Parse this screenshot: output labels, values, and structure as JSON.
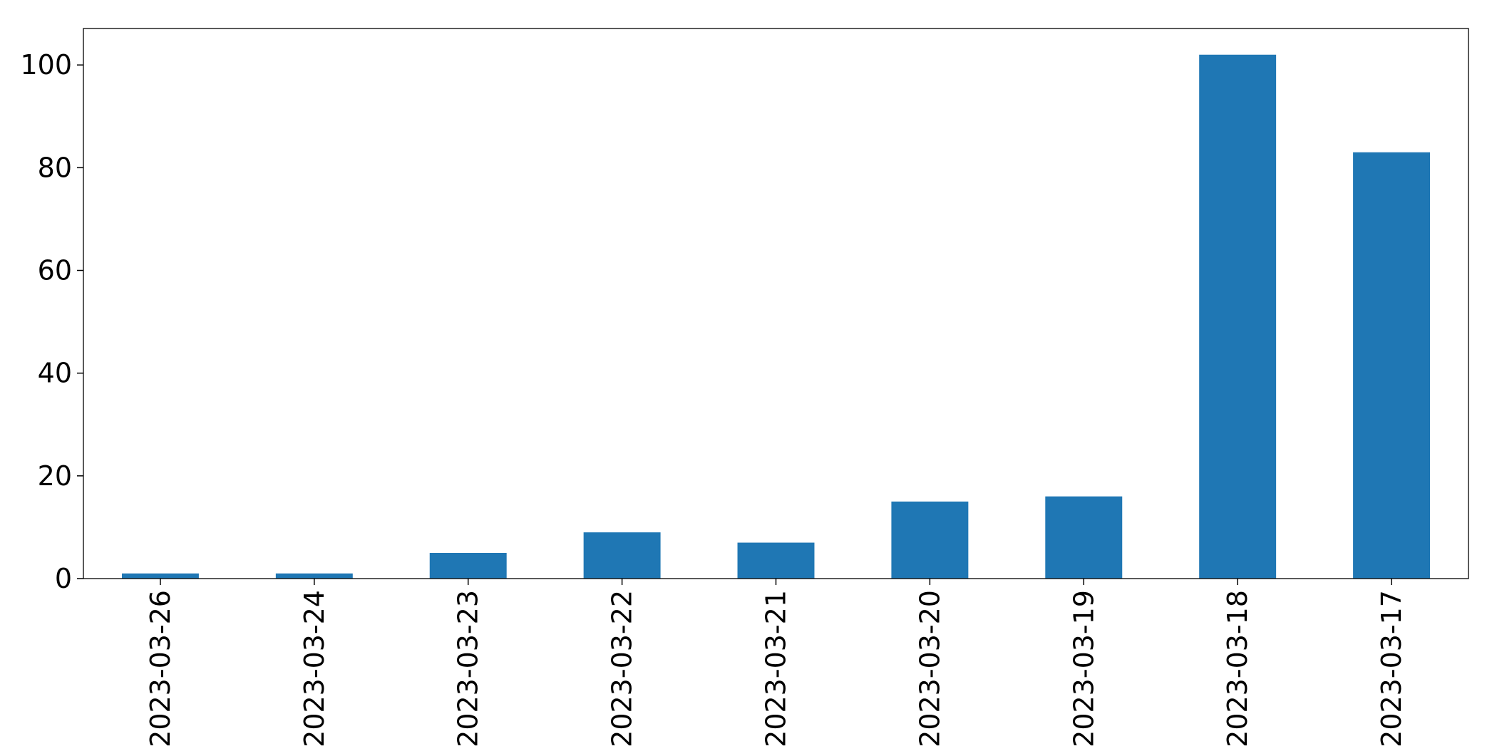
{
  "chart_data": {
    "type": "bar",
    "title": "",
    "xlabel": "",
    "ylabel": "",
    "categories": [
      "2023-03-26",
      "2023-03-24",
      "2023-03-23",
      "2023-03-22",
      "2023-03-21",
      "2023-03-20",
      "2023-03-19",
      "2023-03-18",
      "2023-03-17"
    ],
    "values": [
      1,
      1,
      5,
      9,
      7,
      15,
      16,
      102,
      83
    ],
    "ylim": [
      0,
      107.1
    ],
    "yticks": [
      0,
      20,
      40,
      60,
      80,
      100
    ],
    "grid": false,
    "legend": "none",
    "bar_color": "#1f77b4"
  }
}
